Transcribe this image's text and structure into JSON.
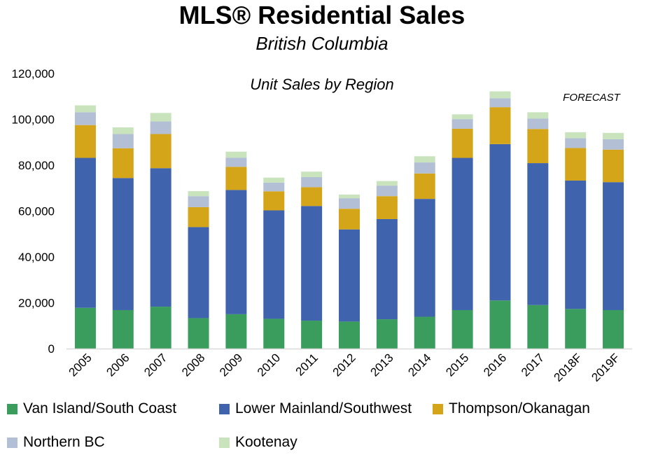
{
  "chart_data": {
    "type": "bar",
    "stacked": true,
    "title": "MLS® Residential Sales",
    "subtitle": "British Columbia",
    "chart_title": "Unit Sales by Region",
    "annotation": "FORECAST",
    "xlabel": "",
    "ylabel": "",
    "ylim": [
      0,
      120000
    ],
    "yticks": [
      "0",
      "20,000",
      "40,000",
      "60,000",
      "80,000",
      "100,000",
      "120,000"
    ],
    "categories": [
      "2005",
      "2006",
      "2007",
      "2008",
      "2009",
      "2010",
      "2011",
      "2012",
      "2013",
      "2014",
      "2015",
      "2016",
      "2017",
      "2018F",
      "2019F"
    ],
    "series": [
      {
        "name": "Van Island/South Coast",
        "color": "#3a9d5d",
        "values": [
          17800,
          16800,
          18300,
          13300,
          15000,
          13000,
          12200,
          11800,
          12800,
          13900,
          16800,
          21000,
          19000,
          17300,
          16800
        ]
      },
      {
        "name": "Lower Mainland/Southwest",
        "color": "#3f63ad",
        "values": [
          65400,
          57600,
          60400,
          39700,
          54200,
          47300,
          50000,
          40200,
          43700,
          51400,
          66400,
          68200,
          61900,
          56000,
          55800
        ]
      },
      {
        "name": "Thompson/Okanagan",
        "color": "#d4a518",
        "values": [
          14300,
          13000,
          14900,
          8700,
          10100,
          8300,
          8200,
          9000,
          10000,
          11100,
          12700,
          16100,
          14900,
          14200,
          14200
        ]
      },
      {
        "name": "Northern BC",
        "color": "#b3bfd4",
        "values": [
          5600,
          6200,
          5500,
          4800,
          4000,
          3800,
          4400,
          4600,
          4600,
          4800,
          4200,
          3900,
          4600,
          4300,
          4500
        ]
      },
      {
        "name": "Kootenay",
        "color": "#c9e4bd",
        "values": [
          3000,
          2900,
          3700,
          2200,
          2600,
          2200,
          2400,
          1600,
          2000,
          2700,
          2100,
          3000,
          2700,
          2600,
          2800
        ]
      }
    ],
    "grid": false,
    "legend_position": "bottom"
  }
}
